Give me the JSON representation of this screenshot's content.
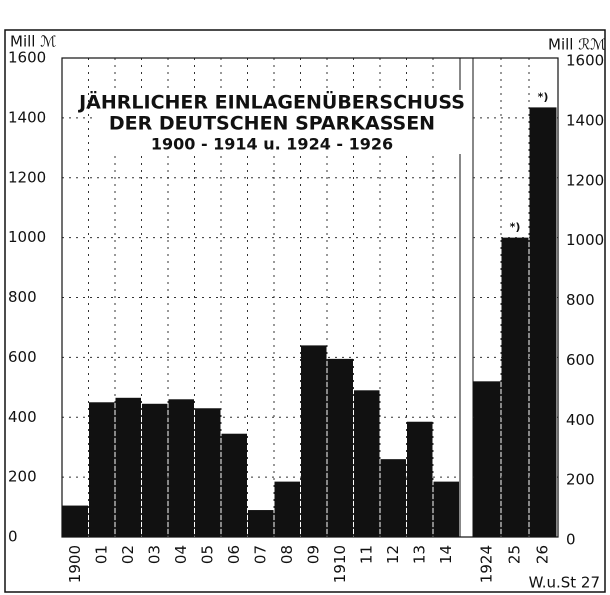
{
  "chart_data": {
    "type": "bar",
    "title": [
      "JÄHRLICHER EINLAGENÜBERSCHUSS",
      "DER DEUTSCHEN SPARKASSEN",
      "1900 - 1914 u. 1924 - 1926"
    ],
    "ylabel": "Mill ℳ",
    "y2label": "Mill ℛℳ",
    "categories": [
      "1900",
      "01",
      "02",
      "03",
      "04",
      "05",
      "06",
      "07",
      "08",
      "09",
      "1910",
      "11",
      "12",
      "13",
      "14",
      "1924",
      "25",
      "26"
    ],
    "series": [
      {
        "color": "#111111",
        "values": [
          105,
          450,
          465,
          445,
          460,
          430,
          345,
          90,
          185,
          640,
          595,
          490,
          260,
          385,
          185,
          null,
          null,
          null
        ]
      },
      {
        "color": "#111111",
        "axis": "y2",
        "values": [
          null,
          null,
          null,
          null,
          null,
          null,
          null,
          null,
          null,
          null,
          null,
          null,
          null,
          null,
          null,
          520,
          1000,
          1435
        ]
      }
    ],
    "annotations": [
      "*)",
      "*)"
    ],
    "source": "W.u.St 27",
    "ylim": [
      0,
      1600
    ],
    "yticks": [
      0,
      200,
      400,
      600,
      800,
      1000,
      1200,
      1400,
      1600
    ],
    "y2lim": [
      0,
      1600
    ],
    "y2ticks": [
      0,
      200,
      400,
      600,
      800,
      1000,
      1200,
      1400,
      1600
    ],
    "grid": true
  }
}
